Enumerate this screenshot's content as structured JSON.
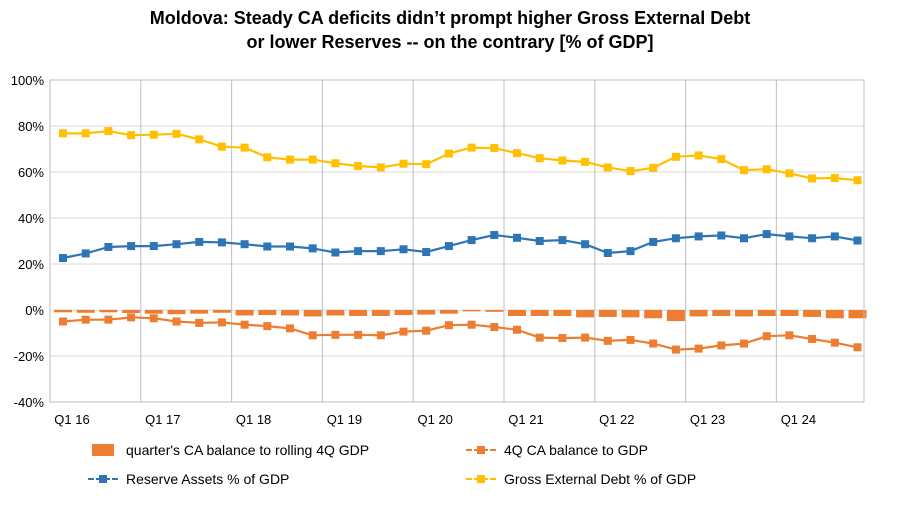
{
  "title": {
    "line1": "Moldova: Steady CA deficits didn’t prompt higher Gross External Debt",
    "line2": "or lower Reserves -- on the contrary  [% of GDP]"
  },
  "chart_data": {
    "type": "line",
    "title": "Moldova: Steady CA deficits didn’t prompt higher Gross External Debt or lower Reserves -- on the contrary  [% of GDP]",
    "xlabel": "",
    "ylabel": "",
    "ylim": [
      -40,
      100
    ],
    "y_ticks": [
      -40,
      -20,
      0,
      20,
      40,
      60,
      80,
      100
    ],
    "y_tick_labels": [
      "-40%",
      "-20%",
      "0%",
      "20%",
      "40%",
      "60%",
      "80%",
      "100%"
    ],
    "x_tick_labels": [
      "Q1 16",
      "Q1 17",
      "Q1 18",
      "Q1 19",
      "Q1 20",
      "Q1 21",
      "Q1 22",
      "Q1 23",
      "Q1 24"
    ],
    "n_quarters": 36,
    "grid": true,
    "legend_position": "bottom",
    "series": [
      {
        "name": "quarter's CA balance to rolling 4Q GDP",
        "kind": "bar",
        "color": "#ED7D31",
        "values": [
          -1.0,
          -1.2,
          -1.0,
          -1.3,
          -1.6,
          -1.8,
          -1.6,
          -1.2,
          -2.4,
          -2.2,
          -2.4,
          -2.8,
          -2.4,
          -2.6,
          -2.6,
          -2.2,
          -2.0,
          -1.6,
          -0.6,
          -0.8,
          -2.6,
          -2.6,
          -2.6,
          -3.2,
          -3.0,
          -3.2,
          -3.6,
          -4.8,
          -2.8,
          -2.6,
          -2.8,
          -2.6,
          -2.6,
          -3.0,
          -3.6,
          -3.6
        ]
      },
      {
        "name": "4Q CA balance to GDP",
        "kind": "line",
        "color": "#ED7D31",
        "values": [
          -5.0,
          -4.2,
          -4.2,
          -3.2,
          -3.6,
          -5.0,
          -5.6,
          -5.4,
          -6.4,
          -7.0,
          -8.0,
          -11.0,
          -10.8,
          -10.8,
          -11.0,
          -9.4,
          -9.0,
          -6.6,
          -6.4,
          -7.4,
          -8.6,
          -12.0,
          -12.2,
          -12.0,
          -13.4,
          -13.0,
          -14.6,
          -17.2,
          -16.8,
          -15.4,
          -14.6,
          -11.4,
          -11.0,
          -12.6,
          -14.2,
          -16.2
        ]
      },
      {
        "name": "Reserve Assets % of GDP",
        "kind": "line",
        "color": "#2E75B6",
        "values": [
          22.6,
          24.6,
          27.4,
          27.8,
          27.8,
          28.6,
          29.6,
          29.4,
          28.6,
          27.6,
          27.6,
          26.8,
          25.0,
          25.6,
          25.6,
          26.4,
          25.2,
          27.8,
          30.4,
          32.6,
          31.4,
          30.0,
          30.4,
          28.6,
          24.8,
          25.6,
          29.6,
          31.2,
          32.0,
          32.4,
          31.2,
          33.0,
          32.0,
          31.2,
          32.0,
          30.2
        ]
      },
      {
        "name": "Gross External Debt % of GDP",
        "kind": "line",
        "color": "#FFC000",
        "values": [
          76.8,
          76.8,
          77.8,
          76.0,
          76.2,
          76.6,
          74.2,
          71.0,
          70.6,
          66.4,
          65.4,
          65.4,
          63.8,
          62.6,
          62.0,
          63.6,
          63.4,
          68.0,
          70.6,
          70.4,
          68.2,
          66.0,
          65.0,
          64.4,
          62.0,
          60.4,
          61.8,
          66.6,
          67.2,
          65.6,
          60.8,
          61.2,
          59.4,
          57.2,
          57.4,
          56.4
        ]
      }
    ]
  }
}
